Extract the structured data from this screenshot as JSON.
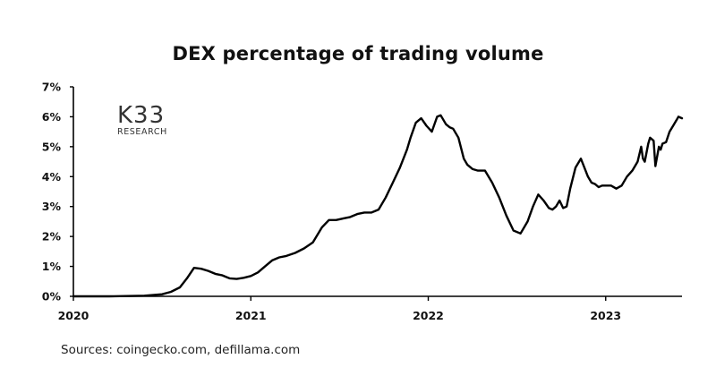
{
  "logo": {
    "brand": "K33",
    "sub": "RESEARCH"
  },
  "source_note": "Sources: coingecko.com, defillama.com",
  "chart_data": {
    "type": "line",
    "title": "DEX percentage of trading volume",
    "xlabel": "",
    "ylabel": "",
    "xlim": [
      2020.0,
      2023.43
    ],
    "ylim": [
      0,
      7
    ],
    "x_ticks": [
      2020,
      2021,
      2022,
      2023
    ],
    "x_tick_labels": [
      "2020",
      "2021",
      "2022",
      "2023"
    ],
    "y_ticks": [
      0,
      1,
      2,
      3,
      4,
      5,
      6,
      7
    ],
    "y_tick_labels": [
      "0%",
      "1%",
      "2%",
      "3%",
      "4%",
      "5%",
      "6%",
      "7%"
    ],
    "grid": false,
    "line_color": "#000000",
    "series": [
      {
        "x": [
          2020.0,
          2020.2,
          2020.4,
          2020.5,
          2020.55,
          2020.6,
          2020.64,
          2020.68,
          2020.72,
          2020.76,
          2020.8,
          2020.84,
          2020.88,
          2020.92,
          2020.96,
          2021.0,
          2021.04,
          2021.08,
          2021.12,
          2021.16,
          2021.2,
          2021.25,
          2021.3,
          2021.35,
          2021.4,
          2021.44,
          2021.48,
          2021.52,
          2021.56,
          2021.6,
          2021.64,
          2021.68,
          2021.72,
          2021.76,
          2021.8,
          2021.84,
          2021.88,
          2021.9,
          2021.93,
          2021.96,
          2021.99,
          2022.02,
          2022.05,
          2022.07,
          2022.1,
          2022.12,
          2022.14,
          2022.17,
          2022.2,
          2022.22,
          2022.25,
          2022.28,
          2022.32,
          2022.36,
          2022.4,
          2022.44,
          2022.48,
          2022.52,
          2022.56,
          2022.59,
          2022.62,
          2022.65,
          2022.68,
          2022.7,
          2022.72,
          2022.74,
          2022.76,
          2022.78,
          2022.8,
          2022.83,
          2022.86,
          2022.88,
          2022.9,
          2022.92,
          2022.94,
          2022.96,
          2022.98,
          2023.0,
          2023.03,
          2023.06,
          2023.09,
          2023.12,
          2023.15,
          2023.18,
          2023.2,
          2023.21,
          2023.22,
          2023.24,
          2023.25,
          2023.27,
          2023.28,
          2023.3,
          2023.31,
          2023.32,
          2023.34,
          2023.36,
          2023.38,
          2023.4,
          2023.41,
          2023.43
        ],
        "y": [
          0.0,
          0.0,
          0.02,
          0.07,
          0.15,
          0.3,
          0.6,
          0.95,
          0.92,
          0.85,
          0.75,
          0.7,
          0.6,
          0.58,
          0.62,
          0.68,
          0.8,
          1.0,
          1.2,
          1.3,
          1.35,
          1.45,
          1.6,
          1.8,
          2.3,
          2.55,
          2.55,
          2.6,
          2.65,
          2.75,
          2.8,
          2.8,
          2.9,
          3.3,
          3.8,
          4.3,
          4.9,
          5.3,
          5.8,
          5.95,
          5.7,
          5.5,
          6.0,
          6.05,
          5.75,
          5.65,
          5.6,
          5.3,
          4.6,
          4.4,
          4.25,
          4.2,
          4.2,
          3.8,
          3.3,
          2.7,
          2.2,
          2.1,
          2.5,
          3.0,
          3.4,
          3.2,
          2.95,
          2.9,
          3.0,
          3.2,
          2.95,
          3.0,
          3.6,
          4.3,
          4.6,
          4.3,
          4.0,
          3.8,
          3.75,
          3.65,
          3.7,
          3.7,
          3.7,
          3.6,
          3.7,
          4.0,
          4.2,
          4.5,
          5.0,
          4.6,
          4.5,
          5.1,
          5.3,
          5.2,
          4.35,
          5.0,
          4.9,
          5.1,
          5.15,
          5.5,
          5.7,
          5.9,
          6.0,
          5.95
        ]
      }
    ]
  }
}
